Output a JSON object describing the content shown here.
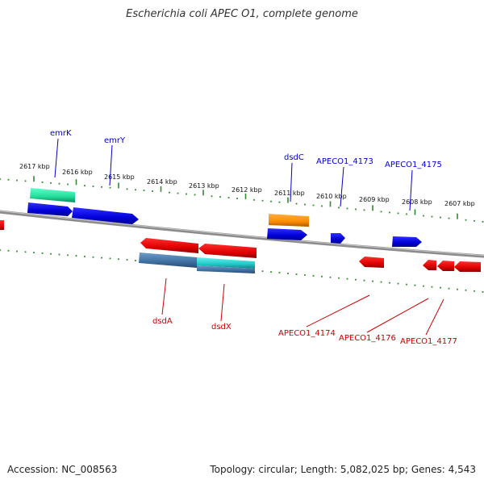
{
  "title": "Escherichia coli APEC O1, complete genome",
  "footer": {
    "accession": "Accession: NC_008563",
    "summary": "Topology: circular; Length: 5,082,025 bp; Genes: 4,543"
  },
  "scale": {
    "unit": "kbp",
    "labels": [
      "2617 kbp",
      "2616 kbp",
      "2615 kbp",
      "2614 kbp",
      "2613 kbp",
      "2612 kbp",
      "2611 kbp",
      "2610 kbp",
      "2609 kbp",
      "2608 kbp",
      "2607 kbp"
    ],
    "values_kbp": [
      2617,
      2616,
      2615,
      2614,
      2613,
      2612,
      2611,
      2610,
      2609,
      2608,
      2607
    ],
    "tick_color": "#2e8b2e"
  },
  "genes": {
    "forward": [
      {
        "label": "emrK",
        "color": "#0000cc"
      },
      {
        "label": "emrY",
        "color": "#0000cc"
      },
      {
        "label": "dsdC",
        "color": "#0000cc"
      },
      {
        "label": "APECO1_4173",
        "color": "#0000cc"
      },
      {
        "label": "APECO1_4175",
        "color": "#0000cc"
      }
    ],
    "reverse": [
      {
        "label": "dsdA",
        "color": "#cc0000"
      },
      {
        "label": "dsdX",
        "color": "#cc0000"
      },
      {
        "label": "APECO1_4174",
        "color": "#cc0000"
      },
      {
        "label": "APECO1_4176",
        "color": "#cc0000"
      },
      {
        "label": "APECO1_4177",
        "color": "#cc0000"
      }
    ]
  },
  "colors": {
    "forward_gene": "#1010e0",
    "reverse_gene": "#e51515",
    "backbone": "#888888",
    "feature_green": "#33ddaa",
    "feature_orange": "#ff8c00",
    "feature_steel": "#4a78a8",
    "feature_cyan": "#22c8c8"
  }
}
